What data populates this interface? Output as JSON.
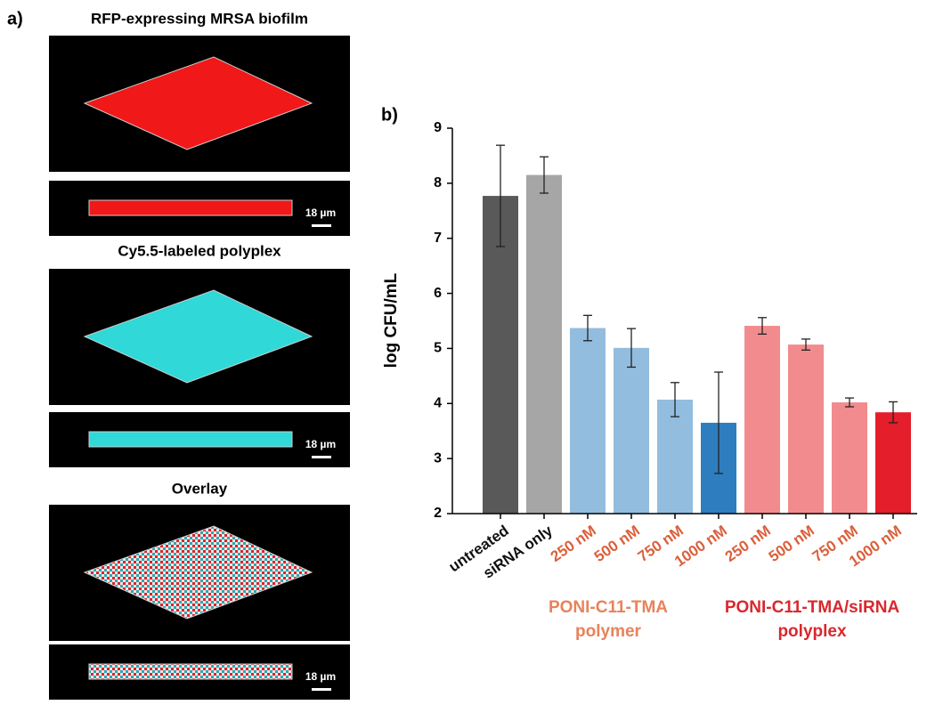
{
  "panel_a": {
    "label": "a)",
    "titles": [
      "RFP-expressing MRSA biofilm",
      "Cy5.5-labeled polyplex",
      "Overlay"
    ],
    "scale_bars": [
      "18 µm",
      "18 µm",
      "18 µm"
    ]
  },
  "chart_data": {
    "type": "bar",
    "label": "b)",
    "y_label": "log CFU/mL",
    "categories": [
      "untreated",
      "siRNA only",
      "250 nM",
      "500 nM",
      "750 nM",
      "1000 nM",
      "250 nM",
      "500 nM",
      "750 nM",
      "1000 nM"
    ],
    "category_colors": [
      "#111111",
      "#111111",
      "#d9603b",
      "#d9603b",
      "#d9603b",
      "#d9603b",
      "#d9603b",
      "#d9603b",
      "#d9603b",
      "#d9603b"
    ],
    "values": [
      7.77,
      8.15,
      5.37,
      5.01,
      4.07,
      3.65,
      5.41,
      5.07,
      4.02,
      3.84
    ],
    "errors": [
      0.92,
      0.33,
      0.23,
      0.35,
      0.31,
      0.92,
      0.15,
      0.1,
      0.08,
      0.19
    ],
    "colors": [
      "#595959",
      "#a6a6a6",
      "#92bddf",
      "#92bddf",
      "#92bddf",
      "#2e7ebf",
      "#f28b8e",
      "#f28b8e",
      "#f28b8e",
      "#e41e2b"
    ],
    "ylim": [
      2,
      9
    ],
    "yticks": [
      2,
      3,
      4,
      5,
      6,
      7,
      8,
      9
    ],
    "groups": [
      {
        "label": [
          "PONI-C11-TMA",
          "polymer"
        ],
        "color": "#e8825a"
      },
      {
        "label": [
          "PONI-C11-TMA/siRNA",
          "polyplex"
        ],
        "color": "#d8282e"
      }
    ]
  }
}
